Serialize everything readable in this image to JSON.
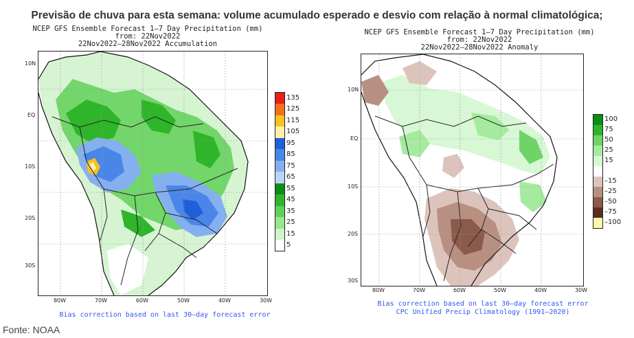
{
  "headline": "Previsão de chuva para esta semana: volume acumulado esperado e desvio com relação à normal climatológica;",
  "source": "Fonte: NOAA",
  "left_map": {
    "title_line1": "NCEP GFS Ensemble Forecast 1–7 Day Precipitation (mm)",
    "title_line2": "from: 22Nov2022",
    "title_line3": "22Nov2022–28Nov2022 Accumulation",
    "lat_labels": [
      "10N",
      "EQ",
      "10S",
      "20S",
      "30S"
    ],
    "lon_labels": [
      "80W",
      "70W",
      "60W",
      "50W",
      "40W",
      "30W"
    ],
    "footnote1": "Bias correction based on last 30–day forecast error",
    "legend": [
      {
        "label": "135",
        "color": "#e8201a"
      },
      {
        "label": "125",
        "color": "#f5701a"
      },
      {
        "label": "115",
        "color": "#f8c020"
      },
      {
        "label": "105",
        "color": "#fff2a8"
      },
      {
        "label": "95",
        "color": "#1f60d8"
      },
      {
        "label": "85",
        "color": "#4a86e8"
      },
      {
        "label": "75",
        "color": "#85b0f0"
      },
      {
        "label": "65",
        "color": "#bcd5f7"
      },
      {
        "label": "55",
        "color": "#0a8f14"
      },
      {
        "label": "45",
        "color": "#2fb52a"
      },
      {
        "label": "35",
        "color": "#5fd05a"
      },
      {
        "label": "25",
        "color": "#98e690"
      },
      {
        "label": "15",
        "color": "#cdf5c8"
      },
      {
        "label": "5",
        "color": "#ffffff"
      }
    ]
  },
  "right_map": {
    "title_line1": "NCEP GFS Ensemble Forecast 1–7 Day Precipitation (mm)",
    "title_line2": "from: 22Nov2022",
    "title_line3": "22Nov2022–28Nov2022 Anomaly",
    "lat_labels": [
      "10N",
      "EQ",
      "10S",
      "20S",
      "30S"
    ],
    "lon_labels": [
      "80W",
      "70W",
      "60W",
      "50W",
      "40W",
      "30W"
    ],
    "footnote1": "Bias correction based on last 30–day forecast error",
    "footnote2": "CPC Unified Precip Climatology (1991–2020)",
    "legend": [
      {
        "label": "100",
        "color": "#0a8f14"
      },
      {
        "label": "75",
        "color": "#2fb52a"
      },
      {
        "label": "50",
        "color": "#6fd468"
      },
      {
        "label": "25",
        "color": "#a6eaa0"
      },
      {
        "label": "15",
        "color": "#d8f7d4"
      },
      {
        "label": "",
        "color": "#ffffff"
      },
      {
        "label": "–15",
        "color": "#dcc4bc"
      },
      {
        "label": "–25",
        "color": "#b89082"
      },
      {
        "label": "–50",
        "color": "#8c5a4a"
      },
      {
        "label": "–75",
        "color": "#5a2e22"
      },
      {
        "label": "–100",
        "color": "#fff6a8"
      }
    ]
  }
}
